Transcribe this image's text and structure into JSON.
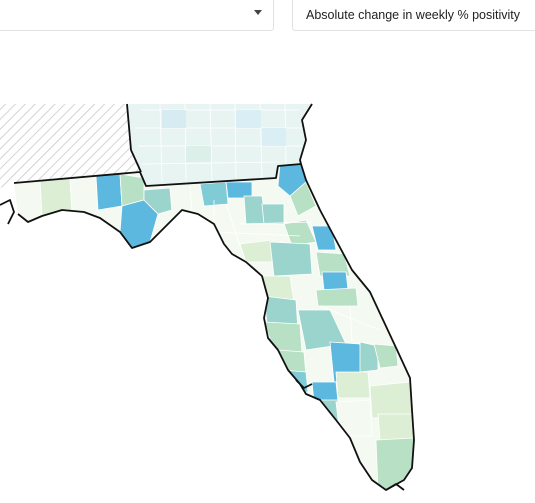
{
  "controls": {
    "geography_select": {
      "value": ""
    },
    "metric_select": {
      "value": "Absolute change in weekly % positivity"
    }
  },
  "map": {
    "state": "Florida",
    "neighbors": [
      "Alabama",
      "Georgia"
    ],
    "no_data_pattern": "diagonal-hatch",
    "scale_colors": {
      "very_low": "#f4faf1",
      "low": "#dcefd5",
      "mid_low": "#b8e0c4",
      "mid": "#9ad4cc",
      "mid_high": "#7fccd6",
      "high": "#5db8df",
      "neighbor_light": "#e3f1f6"
    }
  }
}
